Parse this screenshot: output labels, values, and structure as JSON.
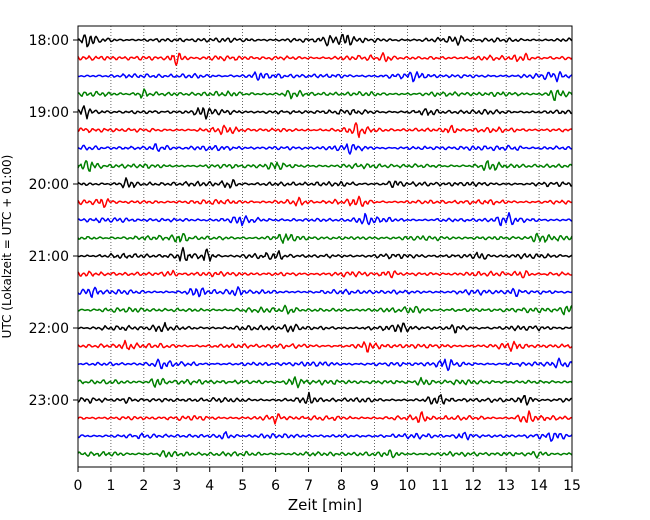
{
  "chart_data": {
    "type": "line",
    "title": "",
    "xlabel": "Zeit  [min]",
    "ylabel": "UTC (Lokalzeit = UTC + 01:00)",
    "xlim": [
      0,
      15
    ],
    "x_ticks": [
      "0",
      "1",
      "2",
      "3",
      "4",
      "5",
      "6",
      "7",
      "8",
      "9",
      "10",
      "11",
      "12",
      "13",
      "14",
      "15"
    ],
    "y_ticks": [
      "18:00",
      "19:00",
      "20:00",
      "21:00",
      "22:00",
      "23:00"
    ],
    "trace_start_hour": 18,
    "trace_interval_minutes": 15,
    "trace_count": 24,
    "trace_colors": [
      "#000000",
      "#ff0000",
      "#0000ff",
      "#008000"
    ],
    "grid": "vertical dotted lines at each minute",
    "series": [
      {
        "values": [
          [
            0.3,
            1.0
          ],
          [
            7.6,
            0.9
          ],
          [
            8.1,
            1.0
          ],
          [
            11.5,
            0.7
          ]
        ]
      },
      {
        "values": [
          [
            3.0,
            1.0
          ],
          [
            9.3,
            0.7
          ],
          [
            13.5,
            0.6
          ]
        ]
      },
      {
        "values": [
          [
            5.5,
            0.5
          ],
          [
            10.2,
            0.7
          ],
          [
            14.5,
            0.6
          ]
        ]
      },
      {
        "values": [
          [
            2.0,
            0.8
          ],
          [
            6.5,
            0.6
          ],
          [
            14.5,
            1.0
          ]
        ]
      },
      {
        "values": [
          [
            0.2,
            0.7
          ],
          [
            3.8,
            0.9
          ],
          [
            10.7,
            0.6
          ]
        ]
      },
      {
        "values": [
          [
            8.5,
            1.0
          ],
          [
            11.3,
            0.6
          ],
          [
            4.5,
            0.5
          ]
        ]
      },
      {
        "values": [
          [
            2.5,
            0.7
          ],
          [
            8.2,
            0.5
          ],
          [
            13.2,
            0.5
          ]
        ]
      },
      {
        "values": [
          [
            0.3,
            0.9
          ],
          [
            6.0,
            0.6
          ],
          [
            12.5,
            0.8
          ]
        ]
      },
      {
        "values": [
          [
            1.5,
            0.8
          ],
          [
            4.6,
            0.7
          ],
          [
            9.6,
            0.6
          ]
        ]
      },
      {
        "values": [
          [
            0.8,
            0.7
          ],
          [
            6.7,
            0.6
          ],
          [
            8.5,
            0.8
          ]
        ]
      },
      {
        "values": [
          [
            5.0,
            0.6
          ],
          [
            8.7,
            0.6
          ],
          [
            13.0,
            1.0
          ]
        ]
      },
      {
        "values": [
          [
            3.1,
            0.9
          ],
          [
            6.3,
            0.6
          ],
          [
            14.0,
            0.7
          ]
        ]
      },
      {
        "values": [
          [
            3.2,
            1.0
          ],
          [
            3.9,
            1.0
          ],
          [
            6.0,
            0.7
          ],
          [
            12.2,
            0.6
          ]
        ]
      },
      {
        "values": [
          [
            2.8,
            0.6
          ],
          [
            9.5,
            0.7
          ],
          [
            13.5,
            0.7
          ]
        ]
      },
      {
        "values": [
          [
            0.4,
            0.8
          ],
          [
            3.6,
            0.7
          ],
          [
            4.8,
            0.6
          ],
          [
            13.3,
            0.6
          ]
        ]
      },
      {
        "values": [
          [
            6.4,
            0.6
          ],
          [
            10.2,
            0.6
          ],
          [
            14.9,
            1.0
          ]
        ]
      },
      {
        "values": [
          [
            2.5,
            0.7
          ],
          [
            6.5,
            0.7
          ],
          [
            9.8,
            0.8
          ],
          [
            11.5,
            0.6
          ]
        ]
      },
      {
        "values": [
          [
            1.5,
            0.6
          ],
          [
            8.8,
            0.6
          ],
          [
            13.2,
            0.7
          ]
        ]
      },
      {
        "values": [
          [
            2.5,
            0.6
          ],
          [
            11.2,
            0.7
          ],
          [
            14.6,
            0.6
          ]
        ]
      },
      {
        "values": [
          [
            2.4,
            0.8
          ],
          [
            6.6,
            1.0
          ],
          [
            10.5,
            0.8
          ]
        ]
      },
      {
        "values": [
          [
            1.5,
            0.5
          ],
          [
            7.0,
            0.8
          ],
          [
            10.9,
            0.8
          ],
          [
            13.6,
            1.0
          ]
        ]
      },
      {
        "values": [
          [
            6.0,
            0.6
          ],
          [
            10.4,
            0.7
          ],
          [
            13.6,
            1.0
          ]
        ]
      },
      {
        "values": [
          [
            4.5,
            0.6
          ],
          [
            11.7,
            0.6
          ],
          [
            14.5,
            0.6
          ]
        ]
      },
      {
        "values": [
          [
            2.7,
            0.5
          ],
          [
            9.5,
            0.5
          ],
          [
            14.0,
            0.5
          ]
        ]
      }
    ]
  }
}
